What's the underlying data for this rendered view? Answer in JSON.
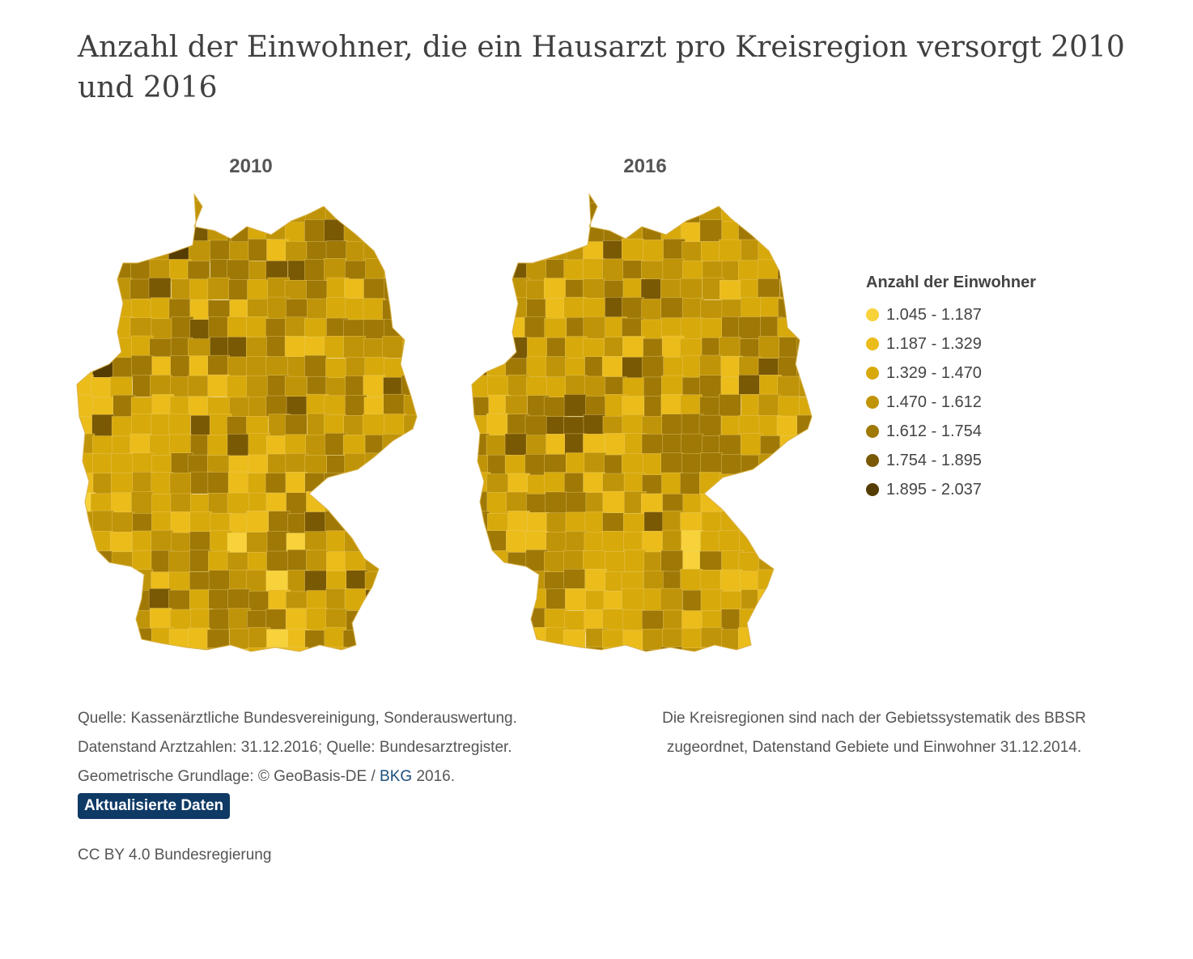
{
  "title": "Anzahl der Einwohner, die ein Hausarzt pro Kreisregion versorgt 2010 und 2016",
  "maps": [
    {
      "label": "2010"
    },
    {
      "label": "2016"
    }
  ],
  "legend": {
    "title": "Anzahl der Einwohner",
    "items": [
      {
        "label": "1.045 - 1.187",
        "color": "#f7d23a"
      },
      {
        "label": "1.187 - 1.329",
        "color": "#ecbc1b"
      },
      {
        "label": "1.329 - 1.470",
        "color": "#d8a90b"
      },
      {
        "label": "1.470 - 1.612",
        "color": "#c09408"
      },
      {
        "label": "1.612 - 1.754",
        "color": "#9f7806"
      },
      {
        "label": "1.754 - 1.895",
        "color": "#7a5904"
      },
      {
        "label": "1.895 - 2.037",
        "color": "#553c02"
      }
    ]
  },
  "source": {
    "line1": "Quelle: Kassenärztliche Bundesvereinigung, Sonderauswertung.",
    "line2": "Datenstand Arztzahlen: 31.12.2016; Quelle: Bundesarztregister.",
    "line3_prefix": "Geometrische Grundlage: © GeoBasis-DE / ",
    "line3_link": "BKG",
    "line3_suffix": " 2016.",
    "button": "Aktualisierte Daten"
  },
  "note": {
    "line1": "Die Kreisregionen sind nach der Gebietssystematik des BBSR",
    "line2": "zugeordnet, Datenstand Gebiete und Einwohner 31.12.2014."
  },
  "license": "CC BY 4.0 Bundesregierung"
}
